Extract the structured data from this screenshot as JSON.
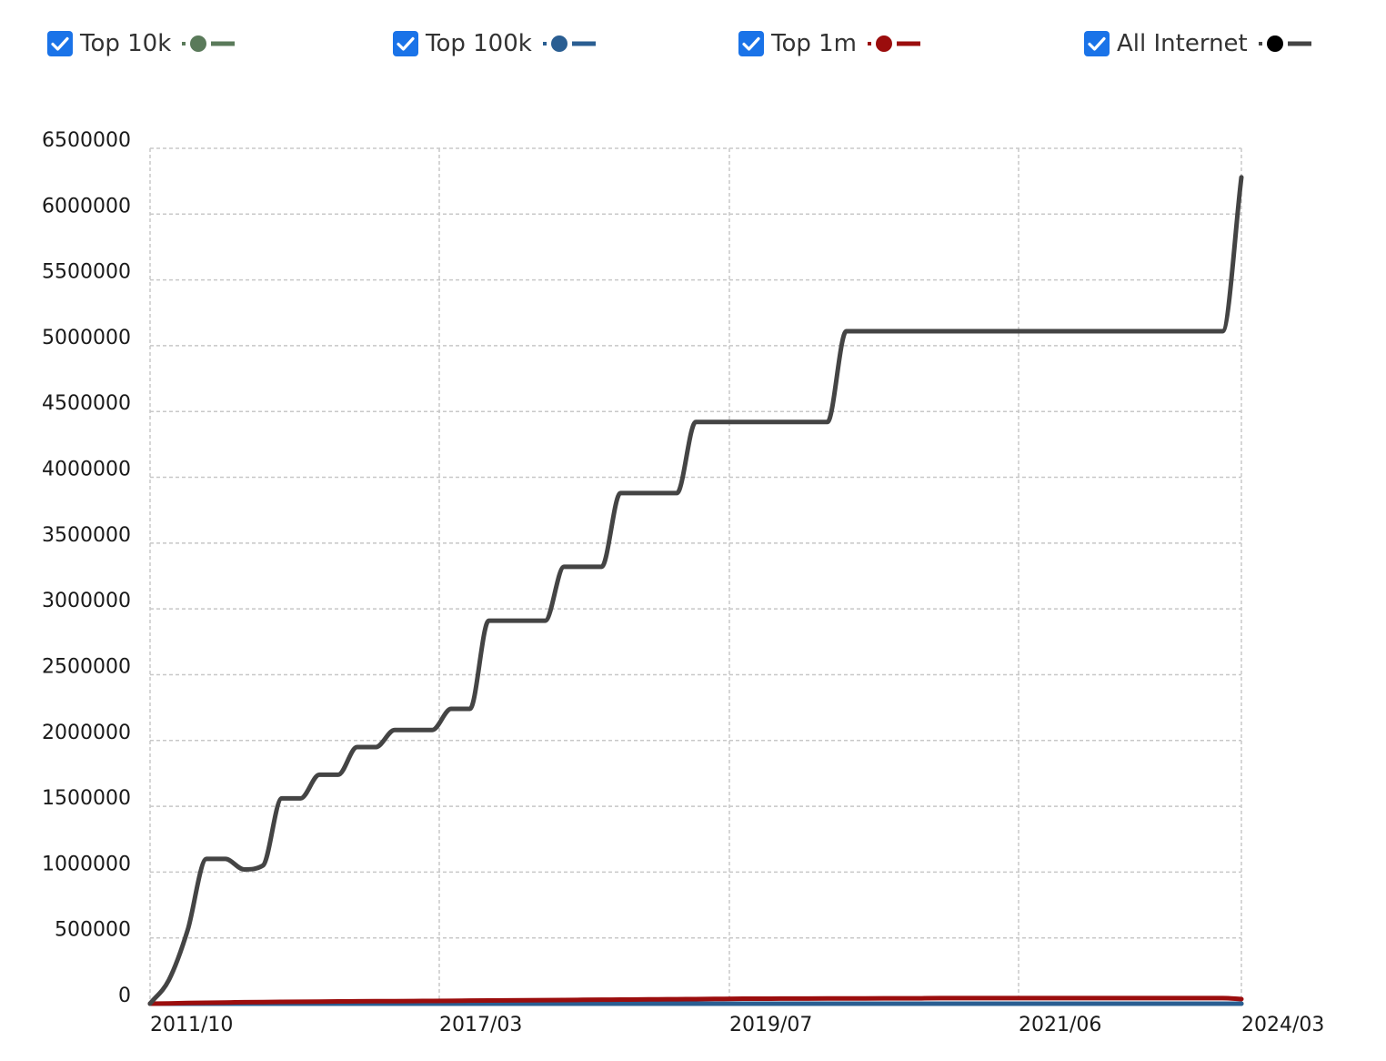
{
  "legend": {
    "items": [
      {
        "label": "Top 10k",
        "color": "#5a7a5a",
        "checked": true,
        "checkbox_color": "#1a73e8"
      },
      {
        "label": "Top 100k",
        "color": "#2a5e92",
        "checked": true,
        "checkbox_color": "#1a73e8"
      },
      {
        "label": "Top 1m",
        "color": "#9b0d0d",
        "checked": true,
        "checkbox_color": "#1a73e8"
      },
      {
        "label": "All Internet",
        "color": "#444444",
        "dot_color": "#000000",
        "checked": true,
        "checkbox_color": "#1a73e8"
      }
    ]
  },
  "chart_data": {
    "type": "line",
    "title": "",
    "xlabel": "",
    "ylabel": "",
    "ylim": [
      0,
      6500000
    ],
    "y_ticks": [
      "6500000",
      "6000000",
      "5500000",
      "5000000",
      "4500000",
      "4000000",
      "3500000",
      "3000000",
      "2500000",
      "2000000",
      "1500000",
      "1000000",
      "500000",
      "0"
    ],
    "x_ticks": [
      "2011/10",
      "2017/03",
      "2019/07",
      "2021/06",
      "2024/03"
    ],
    "grid": true,
    "x": [
      "2011/10",
      "2012/01",
      "2012/06",
      "2012/09",
      "2012/11",
      "2013/02",
      "2013/04",
      "2013/07",
      "2013/09",
      "2013/12",
      "2014/02",
      "2014/05",
      "2014/07",
      "2014/10",
      "2014/12",
      "2015/03",
      "2015/05",
      "2015/08",
      "2015/10",
      "2016/01",
      "2016/03",
      "2016/06",
      "2016/08",
      "2016/11",
      "2017/01",
      "2017/03",
      "2017/06",
      "2017/08",
      "2017/10",
      "2018/01",
      "2018/03",
      "2018/04",
      "2018/06",
      "2018/08",
      "2018/10",
      "2018/12",
      "2019/02",
      "2019/04",
      "2019/07",
      "2019/09",
      "2019/11",
      "2020/01",
      "2020/03",
      "2020/05",
      "2020/07",
      "2020/09",
      "2020/11",
      "2021/01",
      "2021/03",
      "2021/06",
      "2021/09",
      "2022/01",
      "2022/05",
      "2022/09",
      "2023/01",
      "2023/05",
      "2023/09",
      "2023/12",
      "2024/03"
    ],
    "series": [
      {
        "name": "Top 10k",
        "color": "#5a7a5a",
        "values": [
          0,
          0,
          0,
          0,
          0,
          0,
          0,
          0,
          0,
          0,
          0,
          0,
          0,
          0,
          0,
          0,
          0,
          0,
          0,
          0,
          0,
          0,
          0,
          0,
          0,
          0,
          0,
          0,
          0,
          0,
          0,
          0,
          0,
          0,
          0,
          0,
          0,
          0,
          0,
          0,
          0,
          0,
          0,
          0,
          0,
          0,
          0,
          0,
          0,
          0,
          0,
          0,
          0,
          0,
          0,
          0,
          0,
          0,
          0
        ]
      },
      {
        "name": "Top 100k",
        "color": "#2a5e92",
        "values": [
          0,
          0,
          0,
          0,
          0,
          0,
          0,
          0,
          0,
          0,
          0,
          0,
          0,
          0,
          0,
          0,
          0,
          0,
          0,
          0,
          0,
          0,
          0,
          0,
          0,
          0,
          0,
          0,
          0,
          0,
          0,
          0,
          0,
          0,
          0,
          0,
          0,
          0,
          0,
          0,
          0,
          0,
          0,
          0,
          0,
          0,
          0,
          0,
          0,
          0,
          0,
          0,
          0,
          0,
          0,
          0,
          0,
          0,
          0
        ]
      },
      {
        "name": "Top 1m",
        "color": "#9b0d0d",
        "values": [
          0,
          2000,
          5000,
          7000,
          9000,
          11000,
          12000,
          14000,
          15000,
          16000,
          17000,
          18000,
          19000,
          19000,
          20000,
          21000,
          22000,
          23000,
          24000,
          25000,
          26000,
          27000,
          28000,
          29000,
          30000,
          31000,
          32000,
          33000,
          34000,
          35000,
          36000,
          37000,
          38000,
          38000,
          39000,
          39000,
          40000,
          40000,
          40000,
          41000,
          41000,
          41000,
          42000,
          42000,
          42000,
          42000,
          42000,
          42000,
          42000,
          42000,
          42000,
          42000,
          42000,
          42000,
          42000,
          42000,
          42000,
          42000,
          35000
        ]
      },
      {
        "name": "All Internet",
        "color": "#444444",
        "values": [
          0,
          180000,
          560000,
          1100000,
          1100000,
          1020000,
          1050000,
          1560000,
          1560000,
          1740000,
          1740000,
          1950000,
          1950000,
          2080000,
          2080000,
          2080000,
          2240000,
          2240000,
          2910000,
          2910000,
          2910000,
          2910000,
          3320000,
          3320000,
          3320000,
          3880000,
          3880000,
          3880000,
          3880000,
          4420000,
          4420000,
          4420000,
          4420000,
          4420000,
          4420000,
          4420000,
          4420000,
          5110000,
          5110000,
          5110000,
          5110000,
          5110000,
          5110000,
          5110000,
          5110000,
          5110000,
          5110000,
          5110000,
          5110000,
          5110000,
          5110000,
          5110000,
          5110000,
          5110000,
          5110000,
          5110000,
          5110000,
          5110000,
          6280000
        ]
      }
    ]
  }
}
